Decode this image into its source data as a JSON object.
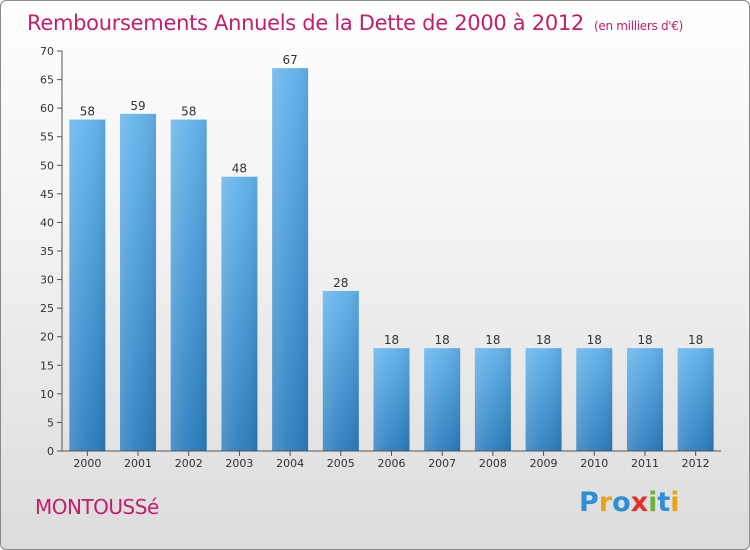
{
  "title": "Remboursements Annuels de la Dette de 2000 à 2012",
  "subtitle": "(en milliers d'€)",
  "city": "MONTOUSSé",
  "logo": {
    "text": "Proxiti",
    "letters": [
      {
        "ch": "P",
        "color": "#2e8fd6"
      },
      {
        "ch": "r",
        "color": "#e8a317"
      },
      {
        "ch": "o",
        "color": "#2e8fd6"
      },
      {
        "ch": "x",
        "color": "#e0312b"
      },
      {
        "ch": "i",
        "color": "#6db33f"
      },
      {
        "ch": "t",
        "color": "#2e8fd6"
      },
      {
        "ch": "i",
        "color": "#e8a317"
      }
    ]
  },
  "colors": {
    "bar_top": "#62b3ec",
    "bar_bottom": "#2a7cbd",
    "accent": "#c21e6b"
  },
  "chart_data": {
    "type": "bar",
    "title": "Remboursements Annuels de la Dette de 2000 à 2012",
    "xlabel": "",
    "ylabel": "",
    "categories": [
      "2000",
      "2001",
      "2002",
      "2003",
      "2004",
      "2005",
      "2006",
      "2007",
      "2008",
      "2009",
      "2010",
      "2011",
      "2012"
    ],
    "values": [
      58,
      59,
      58,
      48,
      67,
      28,
      18,
      18,
      18,
      18,
      18,
      18,
      18
    ],
    "ylim": [
      0,
      70
    ],
    "yticks": [
      0,
      5,
      10,
      15,
      20,
      25,
      30,
      35,
      40,
      45,
      50,
      55,
      60,
      65,
      70
    ],
    "grid": false,
    "show_data_labels": true
  }
}
